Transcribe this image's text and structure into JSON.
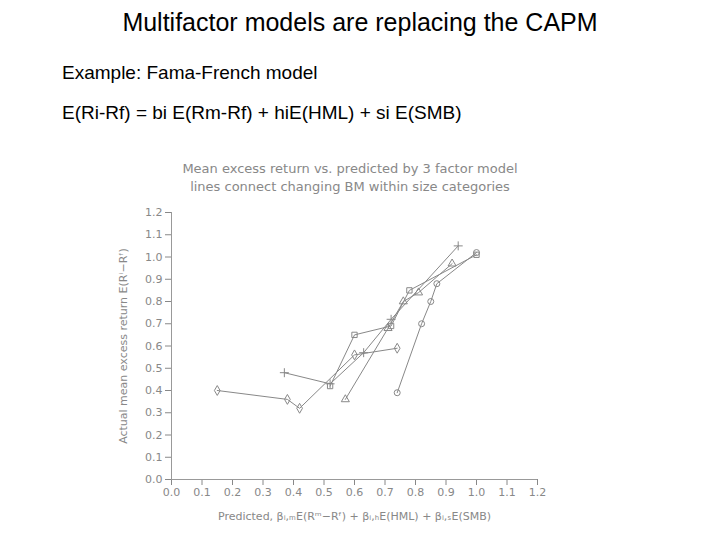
{
  "slide_title": "Multifactor models are replacing the CAPM",
  "subtitle": "Example: Fama-French model",
  "equation": "E(Ri-Rf) = bi E(Rm-Rf) + hiE(HML) + si E(SMB)",
  "chart_data": {
    "type": "line",
    "title": "Mean excess return vs. predicted by 3 factor model",
    "subtitle": "lines connect changing BM within size categories",
    "x_label": "Predicted, βᵢ,ₘE(Rᵐ−Rᶠ) + βᵢ,ₕE(HML) + βᵢ,ₛE(SMB)",
    "y_label": "Actual mean excess return E(Rⁱ−Rᶠ)",
    "xlim": [
      0,
      1.2
    ],
    "ylim": [
      0,
      1.2
    ],
    "xticks": [
      {
        "value": 0,
        "label": "0.0"
      },
      0.1,
      0.2,
      0.3,
      0.4,
      0.5,
      0.6,
      0.7,
      0.8,
      0.9,
      {
        "value": 1,
        "label": "1.0"
      },
      1.1,
      1.2
    ],
    "yticks": [
      {
        "value": 0,
        "label": "0.0"
      },
      0.1,
      0.2,
      0.3,
      0.4,
      0.5,
      0.6,
      0.7,
      0.8,
      0.9,
      {
        "value": 1,
        "label": "1.0"
      },
      1.1,
      1.2
    ],
    "grid": false,
    "series": [
      {
        "color": "#888888",
        "marker": "diamond",
        "x": [
          0.15,
          0.38,
          0.42,
          0.6,
          0.74
        ],
        "values": [
          0.4,
          0.36,
          0.32,
          0.56,
          0.59
        ]
      },
      {
        "color": "#888888",
        "marker": "plus",
        "x": [
          0.37,
          0.52,
          0.63,
          0.72,
          0.94
        ],
        "values": [
          0.48,
          0.43,
          0.57,
          0.72,
          1.05
        ]
      },
      {
        "color": "#888888",
        "marker": "square",
        "x": [
          0.52,
          0.6,
          0.72,
          0.78,
          1.0
        ],
        "values": [
          0.42,
          0.65,
          0.69,
          0.85,
          1.01
        ]
      },
      {
        "color": "#888888",
        "marker": "triangle",
        "x": [
          0.57,
          0.71,
          0.76,
          0.81,
          0.92
        ],
        "values": [
          0.36,
          0.68,
          0.8,
          0.84,
          0.97
        ]
      },
      {
        "color": "#888888",
        "marker": "circle",
        "x": [
          0.74,
          0.82,
          0.85,
          0.87,
          1.0
        ],
        "values": [
          0.39,
          0.7,
          0.8,
          0.88,
          1.02
        ]
      }
    ]
  }
}
